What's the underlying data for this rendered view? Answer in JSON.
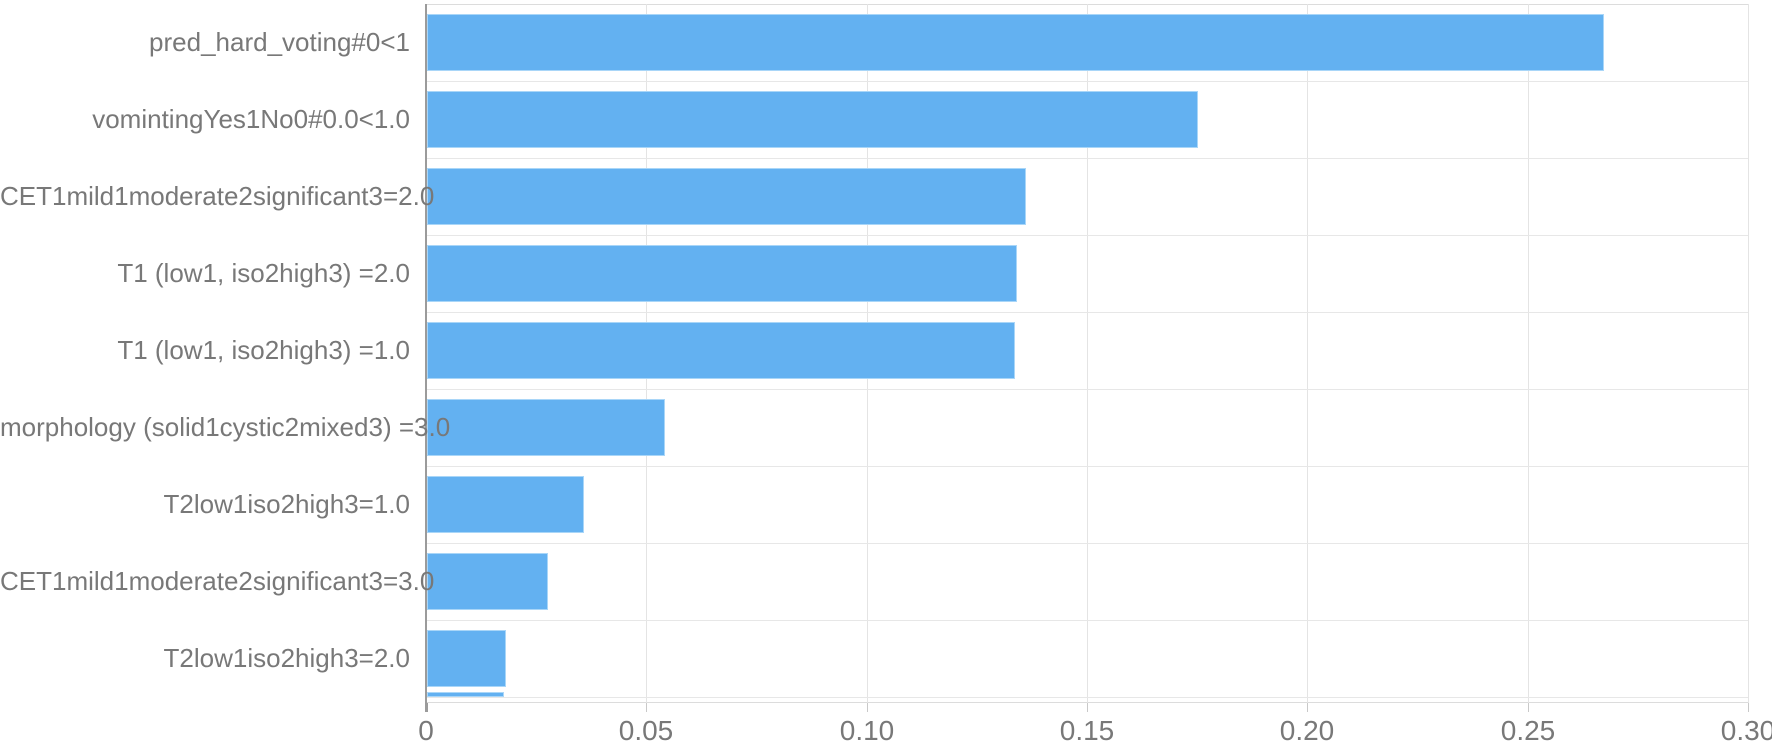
{
  "chart_data": {
    "type": "bar",
    "orientation": "horizontal",
    "title": "",
    "xlabel": "",
    "ylabel": "",
    "xlim": [
      0,
      0.3
    ],
    "x_tick_labels": [
      "0",
      "0.05",
      "0.10",
      "0.15",
      "0.20",
      "0.25",
      "0.30"
    ],
    "x_tick_values": [
      0,
      0.05,
      0.1,
      0.15,
      0.2,
      0.25,
      0.3
    ],
    "grid": true,
    "legend": false,
    "categories": [
      "pred_hard_voting#0<1",
      "vomintingYes1No0#0.0<1.0",
      "CET1mild1moderate2significant3=2.0",
      "T1 (low1, iso2high3) =2.0",
      "T1 (low1, iso2high3) =1.0",
      "morphology (solid1cystic2mixed3) =3.0",
      "T2low1iso2high3=1.0",
      "CET1mild1moderate2significant3=3.0",
      "T2low1iso2high3=2.0"
    ],
    "values": [
      0.267,
      0.175,
      0.136,
      0.134,
      0.1335,
      0.054,
      0.0356,
      0.0275,
      0.018
    ],
    "clipped_partial_bar": {
      "value": 0.0175,
      "label": ""
    },
    "colors": {
      "bar_fill": "#63b1f1",
      "bar_edge": "#a9d6f8",
      "grid_line": "#e4e4e4",
      "plot_border": "#dcdcdc",
      "axis_line": "#9b9b9b",
      "tick_label_text": "#787878"
    }
  }
}
